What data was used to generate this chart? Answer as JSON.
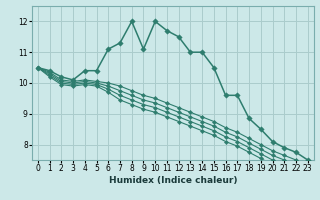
{
  "title": "",
  "xlabel": "Humidex (Indice chaleur)",
  "bg_color": "#cce8e8",
  "grid_color": "#aacccc",
  "line_color": "#2e7d6e",
  "xlim": [
    -0.5,
    23.5
  ],
  "ylim": [
    7.5,
    12.5
  ],
  "xticks": [
    0,
    1,
    2,
    3,
    4,
    5,
    6,
    7,
    8,
    9,
    10,
    11,
    12,
    13,
    14,
    15,
    16,
    17,
    18,
    19,
    20,
    21,
    22,
    23
  ],
  "yticks": [
    8,
    9,
    10,
    11,
    12
  ],
  "series1": [
    10.5,
    10.4,
    10.2,
    10.1,
    10.4,
    10.4,
    11.1,
    11.3,
    12.0,
    11.1,
    12.0,
    11.7,
    11.5,
    11.0,
    11.0,
    10.5,
    9.6,
    9.6,
    8.85,
    8.5,
    8.1,
    7.9,
    7.75,
    7.5
  ],
  "series2": [
    10.5,
    10.35,
    10.1,
    10.05,
    10.1,
    10.05,
    10.0,
    9.9,
    9.75,
    9.6,
    9.5,
    9.35,
    9.2,
    9.05,
    8.9,
    8.75,
    8.55,
    8.4,
    8.2,
    8.0,
    7.8,
    7.65,
    7.5,
    7.35
  ],
  "series3": [
    10.5,
    10.3,
    10.05,
    10.0,
    10.05,
    10.0,
    9.9,
    9.75,
    9.6,
    9.45,
    9.35,
    9.2,
    9.05,
    8.9,
    8.75,
    8.6,
    8.4,
    8.25,
    8.05,
    7.85,
    7.65,
    7.5,
    7.35,
    7.2
  ],
  "series4": [
    10.5,
    10.25,
    10.0,
    9.95,
    10.0,
    9.95,
    9.8,
    9.6,
    9.45,
    9.3,
    9.2,
    9.05,
    8.9,
    8.75,
    8.6,
    8.45,
    8.25,
    8.1,
    7.9,
    7.7,
    7.5,
    7.35,
    7.2,
    7.05
  ],
  "series5": [
    10.5,
    10.2,
    9.95,
    9.9,
    9.95,
    9.9,
    9.7,
    9.45,
    9.3,
    9.15,
    9.05,
    8.9,
    8.75,
    8.6,
    8.45,
    8.3,
    8.1,
    7.95,
    7.75,
    7.55,
    7.35,
    7.2,
    7.05,
    6.9
  ]
}
